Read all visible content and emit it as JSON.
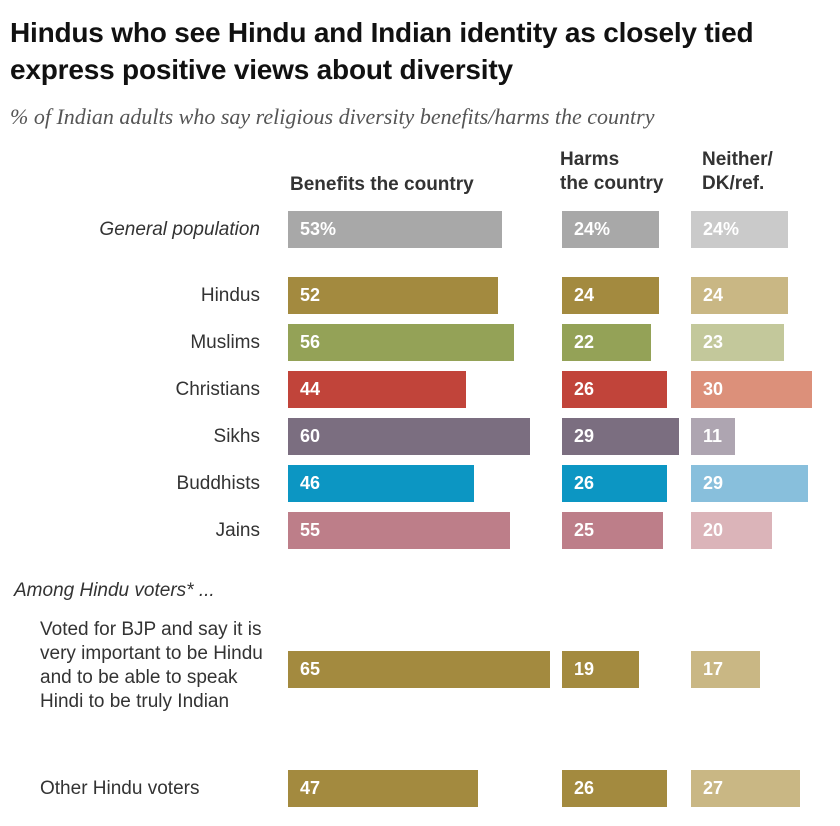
{
  "title": "Hindus who see Hindu and Indian identity as closely tied express positive views about diversity",
  "subtitle": "% of Indian adults who say religious diversity benefits/harms the country",
  "columns": {
    "benefits": "Benefits the country",
    "harms_line1": "Harms",
    "harms_line2": "the country",
    "neither_line1": "Neither/",
    "neither_line2": "DK/ref."
  },
  "section_label": "Among Hindu voters* ...",
  "chart_data": {
    "type": "bar",
    "orientation": "horizontal",
    "title": "Hindus who see Hindu and Indian identity as closely tied express positive views about diversity",
    "subtitle": "% of Indian adults who say religious diversity benefits/harms the country",
    "series": [
      {
        "name": "Benefits the country",
        "values": [
          53,
          52,
          56,
          44,
          60,
          46,
          55,
          65,
          47
        ]
      },
      {
        "name": "Harms the country",
        "values": [
          24,
          24,
          22,
          26,
          29,
          26,
          25,
          19,
          26
        ]
      },
      {
        "name": "Neither/DK/ref.",
        "values": [
          24,
          24,
          23,
          30,
          11,
          29,
          20,
          17,
          27
        ]
      }
    ],
    "categories": [
      "General population",
      "Hindus",
      "Muslims",
      "Christians",
      "Sikhs",
      "Buddhists",
      "Jains",
      "Voted for BJP and say it is very important to be Hindu and to be able to speak Hindi to be truly Indian",
      "Other Hindu voters"
    ],
    "display_labels": [
      [
        "53%",
        "24%",
        "24%"
      ],
      [
        "52",
        "24",
        "24"
      ],
      [
        "56",
        "22",
        "23"
      ],
      [
        "44",
        "26",
        "30"
      ],
      [
        "60",
        "29",
        "11"
      ],
      [
        "46",
        "26",
        "29"
      ],
      [
        "55",
        "25",
        "20"
      ],
      [
        "65",
        "19",
        "17"
      ],
      [
        "47",
        "26",
        "27"
      ]
    ],
    "colors": [
      [
        "#a8a8a8",
        "#a8a8a8",
        "#cacaca"
      ],
      [
        "#a38a3f",
        "#a38a3f",
        "#c9b784"
      ],
      [
        "#94a257",
        "#94a257",
        "#c3c89b"
      ],
      [
        "#c1443a",
        "#c1443a",
        "#dc907a"
      ],
      [
        "#7b6e80",
        "#7b6e80",
        "#aea5b1"
      ],
      [
        "#0c96c3",
        "#0c96c3",
        "#88bfdc"
      ],
      [
        "#bd7e89",
        "#bd7e89",
        "#dbb4b9"
      ],
      [
        "#a38a3f",
        "#a38a3f",
        "#c9b784"
      ],
      [
        "#a38a3f",
        "#a38a3f",
        "#c9b784"
      ]
    ],
    "xlim": [
      0,
      100
    ],
    "grid": false,
    "legend": "none"
  }
}
